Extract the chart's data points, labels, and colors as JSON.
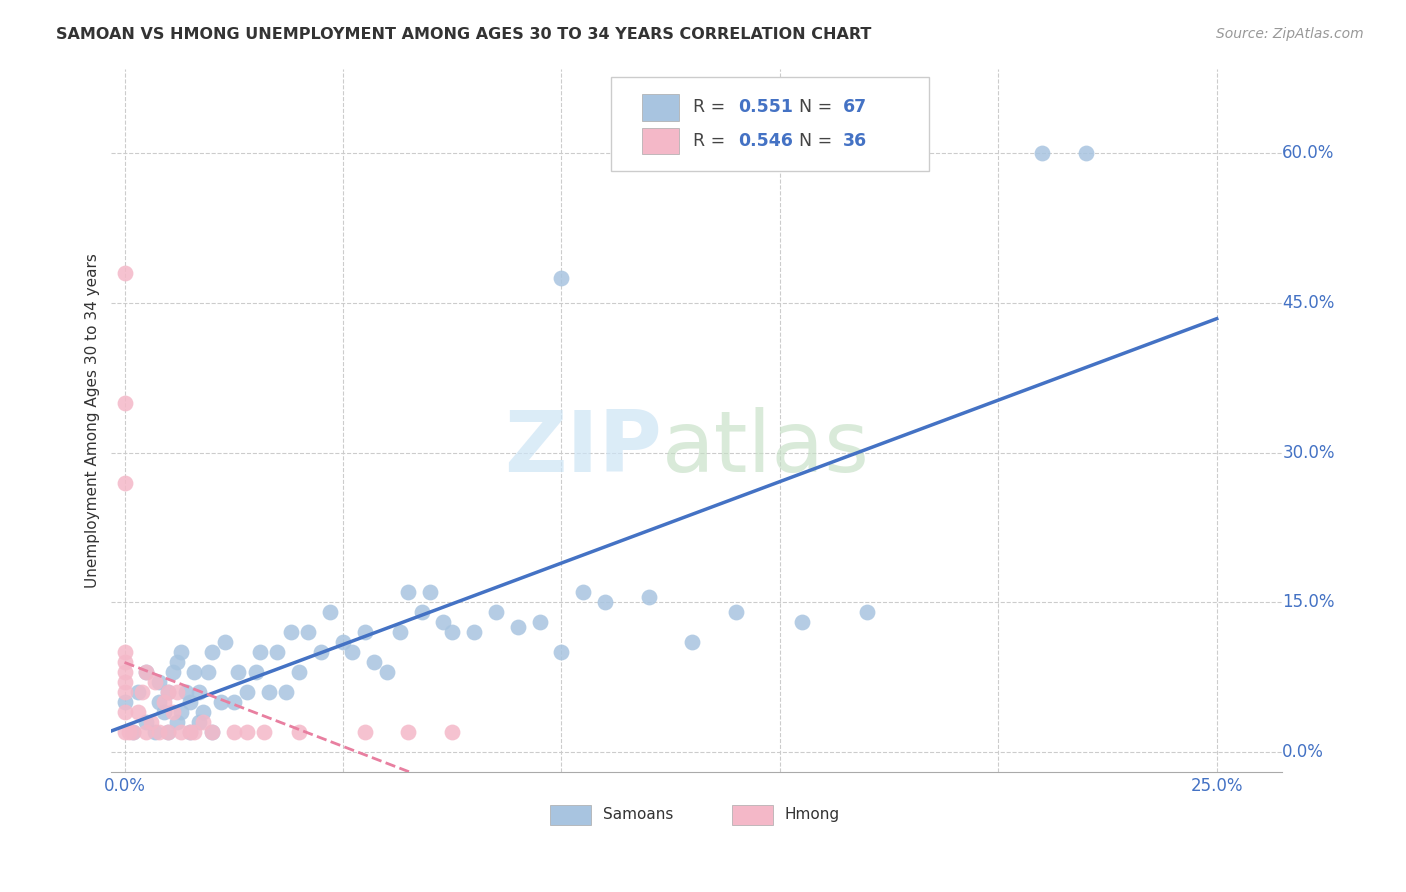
{
  "title": "SAMOAN VS HMONG UNEMPLOYMENT AMONG AGES 30 TO 34 YEARS CORRELATION CHART",
  "source": "Source: ZipAtlas.com",
  "ylabel": "Unemployment Among Ages 30 to 34 years",
  "xlim": [
    -0.003,
    0.265
  ],
  "ylim": [
    -0.02,
    0.685
  ],
  "samoans_x": [
    0.0,
    0.002,
    0.003,
    0.005,
    0.005,
    0.007,
    0.008,
    0.008,
    0.009,
    0.01,
    0.01,
    0.011,
    0.012,
    0.012,
    0.013,
    0.013,
    0.014,
    0.015,
    0.015,
    0.016,
    0.017,
    0.017,
    0.018,
    0.019,
    0.02,
    0.02,
    0.022,
    0.023,
    0.025,
    0.026,
    0.028,
    0.03,
    0.031,
    0.033,
    0.035,
    0.037,
    0.038,
    0.04,
    0.042,
    0.045,
    0.047,
    0.05,
    0.052,
    0.055,
    0.057,
    0.06,
    0.063,
    0.065,
    0.068,
    0.07,
    0.073,
    0.075,
    0.08,
    0.085,
    0.09,
    0.095,
    0.1,
    0.1,
    0.105,
    0.11,
    0.12,
    0.13,
    0.14,
    0.155,
    0.17,
    0.21,
    0.22
  ],
  "samoans_y": [
    0.05,
    0.02,
    0.06,
    0.08,
    0.03,
    0.02,
    0.05,
    0.07,
    0.04,
    0.02,
    0.06,
    0.08,
    0.03,
    0.09,
    0.04,
    0.1,
    0.06,
    0.02,
    0.05,
    0.08,
    0.03,
    0.06,
    0.04,
    0.08,
    0.02,
    0.1,
    0.05,
    0.11,
    0.05,
    0.08,
    0.06,
    0.08,
    0.1,
    0.06,
    0.1,
    0.06,
    0.12,
    0.08,
    0.12,
    0.1,
    0.14,
    0.11,
    0.1,
    0.12,
    0.09,
    0.08,
    0.12,
    0.16,
    0.14,
    0.16,
    0.13,
    0.12,
    0.12,
    0.14,
    0.125,
    0.13,
    0.1,
    0.475,
    0.16,
    0.15,
    0.155,
    0.11,
    0.14,
    0.13,
    0.14,
    0.6,
    0.6
  ],
  "hmong_x": [
    0.0,
    0.0,
    0.0,
    0.0,
    0.0,
    0.0,
    0.0,
    0.0,
    0.0,
    0.0,
    0.001,
    0.002,
    0.003,
    0.004,
    0.005,
    0.005,
    0.006,
    0.007,
    0.008,
    0.009,
    0.01,
    0.01,
    0.011,
    0.012,
    0.013,
    0.015,
    0.016,
    0.018,
    0.02,
    0.025,
    0.028,
    0.032,
    0.04,
    0.055,
    0.065,
    0.075
  ],
  "hmong_y": [
    0.02,
    0.04,
    0.06,
    0.07,
    0.08,
    0.09,
    0.1,
    0.27,
    0.35,
    0.48,
    0.02,
    0.02,
    0.04,
    0.06,
    0.02,
    0.08,
    0.03,
    0.07,
    0.02,
    0.05,
    0.02,
    0.06,
    0.04,
    0.06,
    0.02,
    0.02,
    0.02,
    0.03,
    0.02,
    0.02,
    0.02,
    0.02,
    0.02,
    0.02,
    0.02,
    0.02
  ],
  "samoans_color": "#a8c4e0",
  "hmong_color": "#f4b8c8",
  "samoans_line_color": "#4472c4",
  "hmong_line_color": "#e87fa0",
  "r_samoan": 0.551,
  "n_samoan": 67,
  "r_hmong": 0.546,
  "n_hmong": 36,
  "ytick_vals": [
    0.0,
    0.15,
    0.3,
    0.45,
    0.6
  ],
  "ytick_labels": [
    "0.0%",
    "15.0%",
    "30.0%",
    "45.0%",
    "60.0%"
  ],
  "xtick_vals": [
    0.0,
    0.25
  ],
  "xtick_labels": [
    "0.0%",
    "25.0%"
  ],
  "grid_x": [
    0.0,
    0.05,
    0.1,
    0.15,
    0.2,
    0.25
  ],
  "title_fontsize": 11.5,
  "label_fontsize": 11,
  "tick_fontsize": 12
}
